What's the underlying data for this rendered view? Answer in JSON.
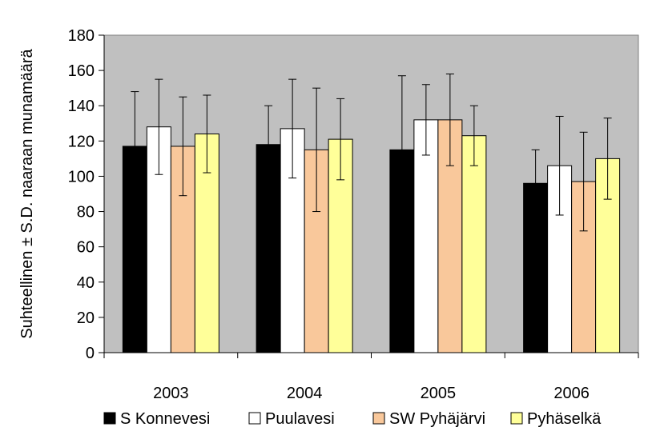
{
  "chart_data": {
    "type": "bar",
    "categories": [
      "2003",
      "2004",
      "2005",
      "2006"
    ],
    "series": [
      {
        "name": "S Konnevesi",
        "values": [
          117,
          118,
          115,
          96
        ],
        "errors": [
          31,
          22,
          42,
          19
        ],
        "color": "#000000"
      },
      {
        "name": "Puulavesi",
        "values": [
          128,
          127,
          132,
          106
        ],
        "errors": [
          27,
          28,
          20,
          28
        ],
        "color": "#ffffff"
      },
      {
        "name": "SW Pyhäjärvi",
        "values": [
          117,
          115,
          132,
          97
        ],
        "errors": [
          28,
          35,
          26,
          28
        ],
        "color": "#f9c89b"
      },
      {
        "name": "Pyhäselkä",
        "values": [
          124,
          121,
          123,
          110
        ],
        "errors": [
          22,
          23,
          17,
          23
        ],
        "color": "#ffff99"
      }
    ],
    "title": "",
    "xlabel": "",
    "ylabel": "Suhteellinen ± S.D. naaraan munamäärä",
    "ylim": [
      0,
      180
    ],
    "yticks": [
      0,
      20,
      40,
      60,
      80,
      100,
      120,
      140,
      160,
      180
    ],
    "grid": false,
    "plot_background": "#c0c0c0",
    "legend_position": "bottom"
  }
}
